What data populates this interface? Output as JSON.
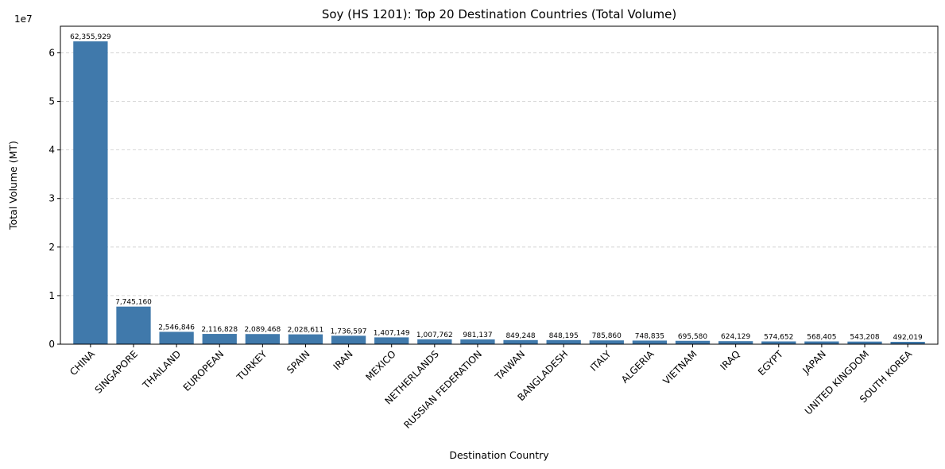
{
  "chart_data": {
    "type": "bar",
    "title": "Soy (HS 1201): Top 20 Destination Countries (Total Volume)",
    "xlabel": "Destination Country",
    "ylabel": "Total Volume (MT)",
    "y_offset_label": "1e7",
    "categories": [
      "CHINA",
      "SINGAPORE",
      "THAILAND",
      "EUROPEAN",
      "TURKEY",
      "SPAIN",
      "IRAN",
      "MEXICO",
      "NETHERLANDS",
      "RUSSIAN FEDERATION",
      "TAIWAN",
      "BANGLADESH",
      "ITALY",
      "ALGERIA",
      "VIETNAM",
      "IRAQ",
      "EGYPT",
      "JAPAN",
      "UNITED KINGDOM",
      "SOUTH KOREA"
    ],
    "values": [
      62355929,
      7745160,
      2546846,
      2116828,
      2089468,
      2028611,
      1736597,
      1407149,
      1007762,
      981137,
      849248,
      848195,
      785860,
      748835,
      695580,
      624129,
      574652,
      568405,
      543208,
      492019
    ],
    "value_labels": [
      "62,355,929",
      "7,745,160",
      "2,546,846",
      "2,116,828",
      "2,089,468",
      "2,028,611",
      "1,736,597",
      "1,407,149",
      "1,007,762",
      "981,137",
      "849,248",
      "848,195",
      "785,860",
      "748,835",
      "695,580",
      "624,129",
      "574,652",
      "568,405",
      "543,208",
      "492,019"
    ],
    "yticks": [
      0,
      10000000,
      20000000,
      30000000,
      40000000,
      50000000,
      60000000
    ],
    "ytick_labels": [
      "0",
      "1",
      "2",
      "3",
      "4",
      "5",
      "6"
    ],
    "ylim": [
      0,
      65473725
    ],
    "grid": "y dashed",
    "bar_color": "#4079ab"
  }
}
